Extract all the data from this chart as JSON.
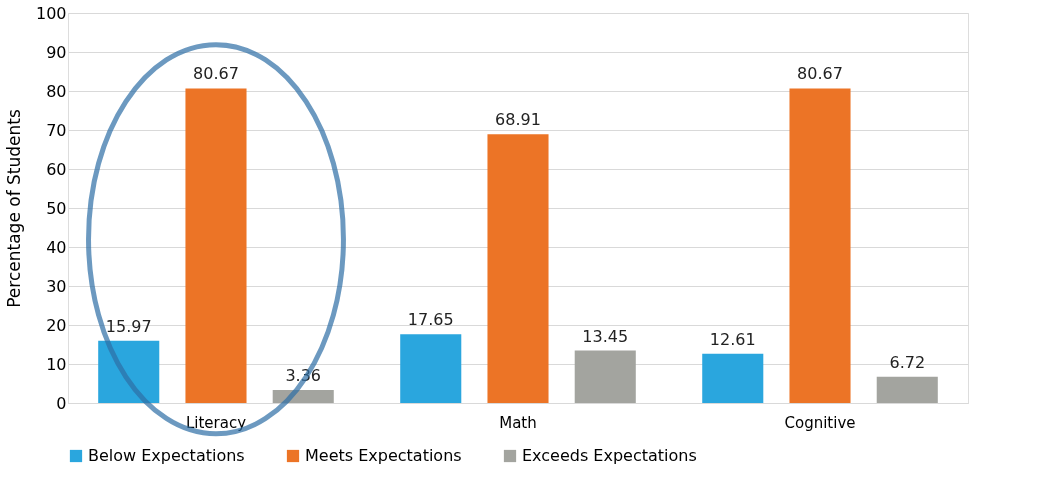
{
  "chart_data": {
    "type": "bar",
    "ylabel": "Percentage of Students",
    "categories": [
      "Literacy",
      "Math",
      "Cognitive"
    ],
    "series": [
      {
        "name": "Below Expectations",
        "color": "#2aa6de",
        "values": [
          15.97,
          17.65,
          12.61
        ]
      },
      {
        "name": "Meets Expectations",
        "color": "#ec7426",
        "values": [
          80.67,
          68.91,
          80.67
        ]
      },
      {
        "name": "Exceeds Expectations",
        "color": "#a3a49f",
        "values": [
          3.36,
          13.45,
          6.72
        ]
      }
    ],
    "ylim": [
      0,
      100
    ],
    "yticks": [
      0,
      10,
      20,
      30,
      40,
      50,
      60,
      70,
      80,
      90,
      100
    ],
    "grid": "y",
    "legend": "bottom",
    "data_labels": true
  }
}
